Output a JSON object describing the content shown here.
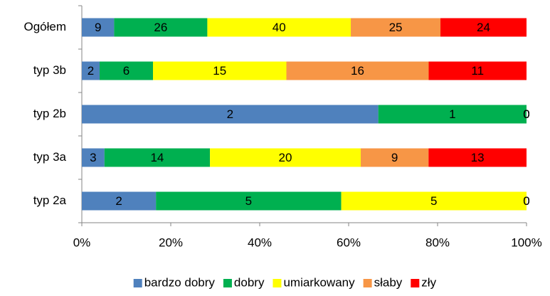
{
  "chart_data": {
    "type": "bar100h",
    "categories": [
      "Ogółem",
      "typ 3b",
      "typ 2b",
      "typ 3a",
      "typ 2a"
    ],
    "series": [
      {
        "name": "bardzo dobry",
        "color": "#4f81bd",
        "values": [
          9,
          2,
          2,
          3,
          2
        ]
      },
      {
        "name": "dobry",
        "color": "#00b050",
        "values": [
          26,
          6,
          1,
          14,
          5
        ]
      },
      {
        "name": "umiarkowany",
        "color": "#ffff00",
        "values": [
          40,
          15,
          0,
          20,
          5
        ]
      },
      {
        "name": "słaby",
        "color": "#f79646",
        "values": [
          25,
          16,
          0,
          9,
          0
        ]
      },
      {
        "name": "zły",
        "color": "#ff0000",
        "values": [
          24,
          11,
          0,
          13,
          0
        ]
      }
    ],
    "xlim": [
      0,
      100
    ],
    "xticks": [
      {
        "value": 0,
        "label": "0%"
      },
      {
        "value": 20,
        "label": "20%"
      },
      {
        "value": 40,
        "label": "40%"
      },
      {
        "value": 60,
        "label": "60%"
      },
      {
        "value": 80,
        "label": "80%"
      },
      {
        "value": 100,
        "label": "100%"
      }
    ],
    "legend": "bottom",
    "grid": false
  }
}
